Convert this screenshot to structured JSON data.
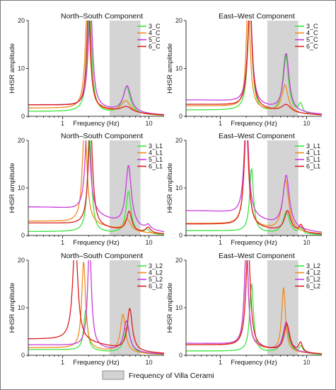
{
  "footer": {
    "band_label": "Frequency of Villa Cerami"
  },
  "colors": {
    "band": "#d4d4d4",
    "green": "#3ce63c",
    "orange": "#f08c1e",
    "magenta": "#c83cdc",
    "red": "#dc1e1e",
    "frame": "#7a7a7a",
    "axis": "#333333"
  },
  "chart_data": [
    {
      "type": "line",
      "title": "North–South Component",
      "xlabel": "Frequency (Hz)",
      "ylabel": "HHSR amplitude",
      "xscale": "log",
      "xlim": [
        0.4,
        15
      ],
      "ylim": [
        0,
        20
      ],
      "xticks": [
        1,
        10
      ],
      "yticks": [
        0,
        10,
        20
      ],
      "shaded_band_hz": [
        3.5,
        8
      ],
      "legend_position": "top-right",
      "grid": false,
      "series": [
        {
          "name": "3_C",
          "color": "green",
          "peaks": [
            [
              2.05,
              22,
              0.07
            ],
            [
              5.5,
              5.7,
              0.12
            ]
          ],
          "background": 1.0
        },
        {
          "name": "4_C",
          "color": "orange",
          "peaks": [
            [
              1.95,
              24,
              0.07
            ],
            [
              5.4,
              2.6,
              0.15
            ]
          ],
          "background": 1.7
        },
        {
          "name": "5_C",
          "color": "magenta",
          "peaks": [
            [
              2.1,
              22,
              0.07
            ],
            [
              5.6,
              5.5,
              0.12
            ]
          ],
          "background": 2.4
        },
        {
          "name": "6_C",
          "color": "red",
          "peaks": [
            [
              2.0,
              22,
              0.06
            ],
            [
              5.5,
              1.2,
              0.18
            ]
          ],
          "background": 2.4
        }
      ]
    },
    {
      "type": "line",
      "title": "East–West Component",
      "xlabel": "Frequency (Hz)",
      "ylabel": "HHSR amplitude",
      "xscale": "log",
      "xlim": [
        0.4,
        15
      ],
      "ylim": [
        0,
        20
      ],
      "xticks": [
        1,
        10
      ],
      "yticks": [
        0,
        10,
        20
      ],
      "shaded_band_hz": [
        3.5,
        8
      ],
      "legend_position": "top-right",
      "grid": false,
      "series": [
        {
          "name": "3_C",
          "color": "green",
          "peaks": [
            [
              2.2,
              22,
              0.07
            ],
            [
              5.7,
              12.5,
              0.09
            ],
            [
              8.5,
              2.0,
              0.06
            ]
          ],
          "background": 1.3
        },
        {
          "name": "4_C",
          "color": "orange",
          "peaks": [
            [
              2.1,
              24,
              0.06
            ],
            [
              5.6,
              5.8,
              0.1
            ]
          ],
          "background": 2.2
        },
        {
          "name": "5_C",
          "color": "magenta",
          "peaks": [
            [
              2.2,
              22,
              0.07
            ],
            [
              5.8,
              12.0,
              0.09
            ]
          ],
          "background": 3.4
        },
        {
          "name": "6_C",
          "color": "red",
          "peaks": [
            [
              2.2,
              22,
              0.07
            ],
            [
              5.8,
              1.6,
              0.15
            ]
          ],
          "background": 2.5
        }
      ]
    },
    {
      "type": "line",
      "title": "North–South Component",
      "xlabel": "Frequency (Hz)",
      "ylabel": "HHSR amplitude",
      "xscale": "log",
      "xlim": [
        0.4,
        15
      ],
      "ylim": [
        0,
        20
      ],
      "xticks": [
        1,
        10
      ],
      "yticks": [
        0,
        10,
        20
      ],
      "shaded_band_hz": [
        3.5,
        8
      ],
      "legend_position": "top-right",
      "grid": false,
      "series": [
        {
          "name": "3_L1",
          "color": "green",
          "peaks": [
            [
              2.05,
              22,
              0.06
            ],
            [
              5.8,
              9.0,
              0.08
            ],
            [
              9.5,
              1.0,
              0.08
            ]
          ],
          "background": 0.8
        },
        {
          "name": "4_L1",
          "color": "orange",
          "peaks": [
            [
              1.8,
              22,
              0.07
            ],
            [
              5.6,
              2.5,
              0.1
            ]
          ],
          "background": 3.0
        },
        {
          "name": "5_L1",
          "color": "magenta",
          "peaks": [
            [
              1.95,
              22,
              0.07
            ],
            [
              5.8,
              12.8,
              0.09
            ],
            [
              9.8,
              1.0,
              0.08
            ]
          ],
          "background": 6.0
        },
        {
          "name": "6_L1",
          "color": "red",
          "peaks": [
            [
              2.1,
              22,
              0.07
            ],
            [
              5.9,
              4.2,
              0.08
            ],
            [
              9.8,
              1.2,
              0.08
            ]
          ],
          "background": 2.6
        }
      ]
    },
    {
      "type": "line",
      "title": "East–West Component",
      "xlabel": "Frequency (Hz)",
      "ylabel": "HHSR amplitude",
      "xscale": "log",
      "xlim": [
        0.4,
        15
      ],
      "ylim": [
        0,
        20
      ],
      "xticks": [
        1,
        10
      ],
      "yticks": [
        0,
        10,
        20
      ],
      "shaded_band_hz": [
        3.5,
        8
      ],
      "legend_position": "top-right",
      "grid": false,
      "series": [
        {
          "name": "3_L1",
          "color": "green",
          "peaks": [
            [
              2.3,
              13.5,
              0.06
            ],
            [
              5.8,
              4.6,
              0.1
            ],
            [
              8.5,
              1.2,
              0.06
            ]
          ],
          "background": 1.0
        },
        {
          "name": "4_L1",
          "color": "orange",
          "peaks": [
            [
              2.0,
              22,
              0.07
            ],
            [
              5.7,
              10.8,
              0.1
            ]
          ],
          "background": 2.5
        },
        {
          "name": "5_L1",
          "color": "magenta",
          "peaks": [
            [
              2.0,
              22,
              0.07
            ],
            [
              5.8,
              11.0,
              0.1
            ]
          ],
          "background": 5.2
        },
        {
          "name": "6_L1",
          "color": "red",
          "peaks": [
            [
              2.0,
              22,
              0.07
            ],
            [
              6.0,
              4.4,
              0.1
            ],
            [
              8.6,
              1.5,
              0.06
            ]
          ],
          "background": 2.4
        }
      ]
    },
    {
      "type": "line",
      "title": "North–South Component",
      "xlabel": "Frequency (Hz)",
      "ylabel": "HHSR amplitude",
      "xscale": "log",
      "xlim": [
        0.4,
        15
      ],
      "ylim": [
        0,
        20
      ],
      "xticks": [
        1,
        10
      ],
      "yticks": [
        0,
        10,
        20
      ],
      "shaded_band_hz": [
        3.5,
        8
      ],
      "legend_position": "top-right",
      "grid": false,
      "series": [
        {
          "name": "3_L2",
          "color": "green",
          "peaks": [
            [
              1.85,
              8.6,
              0.06
            ],
            [
              5.6,
              5.4,
              0.1
            ]
          ],
          "background": 1.2
        },
        {
          "name": "4_L2",
          "color": "orange",
          "peaks": [
            [
              1.75,
              18.5,
              0.06
            ],
            [
              5.0,
              8.0,
              0.08
            ]
          ],
          "background": 1.6
        },
        {
          "name": "5_L2",
          "color": "magenta",
          "peaks": [
            [
              2.05,
              22,
              0.06
            ],
            [
              5.5,
              6.5,
              0.09
            ]
          ],
          "background": 2.2
        },
        {
          "name": "6_L2",
          "color": "red",
          "peaks": [
            [
              1.4,
              22,
              0.08
            ],
            [
              6.0,
              8.8,
              0.08
            ]
          ],
          "background": 3.4
        }
      ]
    },
    {
      "type": "line",
      "title": "East–West Component",
      "xlabel": "Frequency (Hz)",
      "ylabel": "HHSR amplitude",
      "xscale": "log",
      "xlim": [
        0.4,
        15
      ],
      "ylim": [
        0,
        20
      ],
      "xticks": [
        1,
        10
      ],
      "yticks": [
        0,
        10,
        20
      ],
      "shaded_band_hz": [
        3.5,
        8
      ],
      "legend_position": "top-right",
      "grid": false,
      "series": [
        {
          "name": "3_L2",
          "color": "green",
          "peaks": [
            [
              2.3,
              14.5,
              0.06
            ],
            [
              5.7,
              6.0,
              0.1
            ],
            [
              8.6,
              1.5,
              0.06
            ]
          ],
          "background": 0.9
        },
        {
          "name": "4_L2",
          "color": "orange",
          "peaks": [
            [
              2.0,
              22,
              0.06
            ],
            [
              5.4,
              13.5,
              0.06
            ]
          ],
          "background": 2.2
        },
        {
          "name": "5_L2",
          "color": "magenta",
          "peaks": [
            [
              2.0,
              22,
              0.06
            ],
            [
              5.8,
              6.2,
              0.09
            ]
          ],
          "background": 2.5
        },
        {
          "name": "6_L2",
          "color": "red",
          "peaks": [
            [
              2.1,
              22,
              0.07
            ],
            [
              5.9,
              5.8,
              0.09
            ],
            [
              8.5,
              2.0,
              0.06
            ]
          ],
          "background": 2.2
        }
      ]
    }
  ]
}
